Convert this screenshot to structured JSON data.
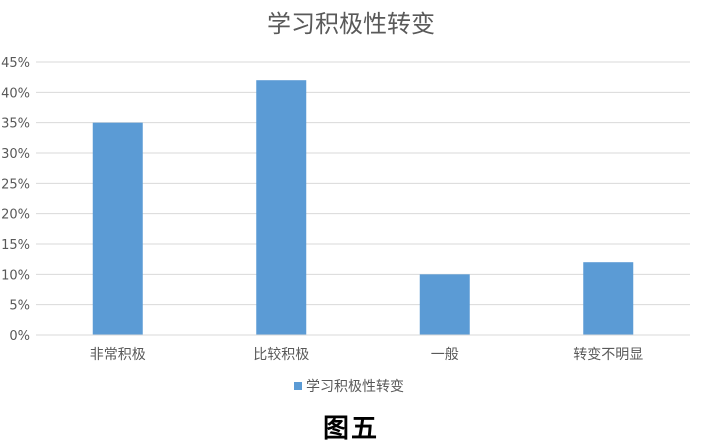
{
  "chart_data": {
    "type": "bar",
    "title": "学习积极性转变",
    "categories": [
      "非常积极",
      "比较积极",
      "一般",
      "转变不明显"
    ],
    "series": [
      {
        "name": "学习积极性转变",
        "values": [
          35,
          42,
          10,
          12
        ],
        "color": "#5b9bd5"
      }
    ],
    "ylim": [
      0,
      45
    ],
    "ytick_step": 5,
    "ytick_suffix": "%",
    "grid": true,
    "legend": "bottom",
    "xlabel": "",
    "ylabel": ""
  },
  "caption": "图五"
}
